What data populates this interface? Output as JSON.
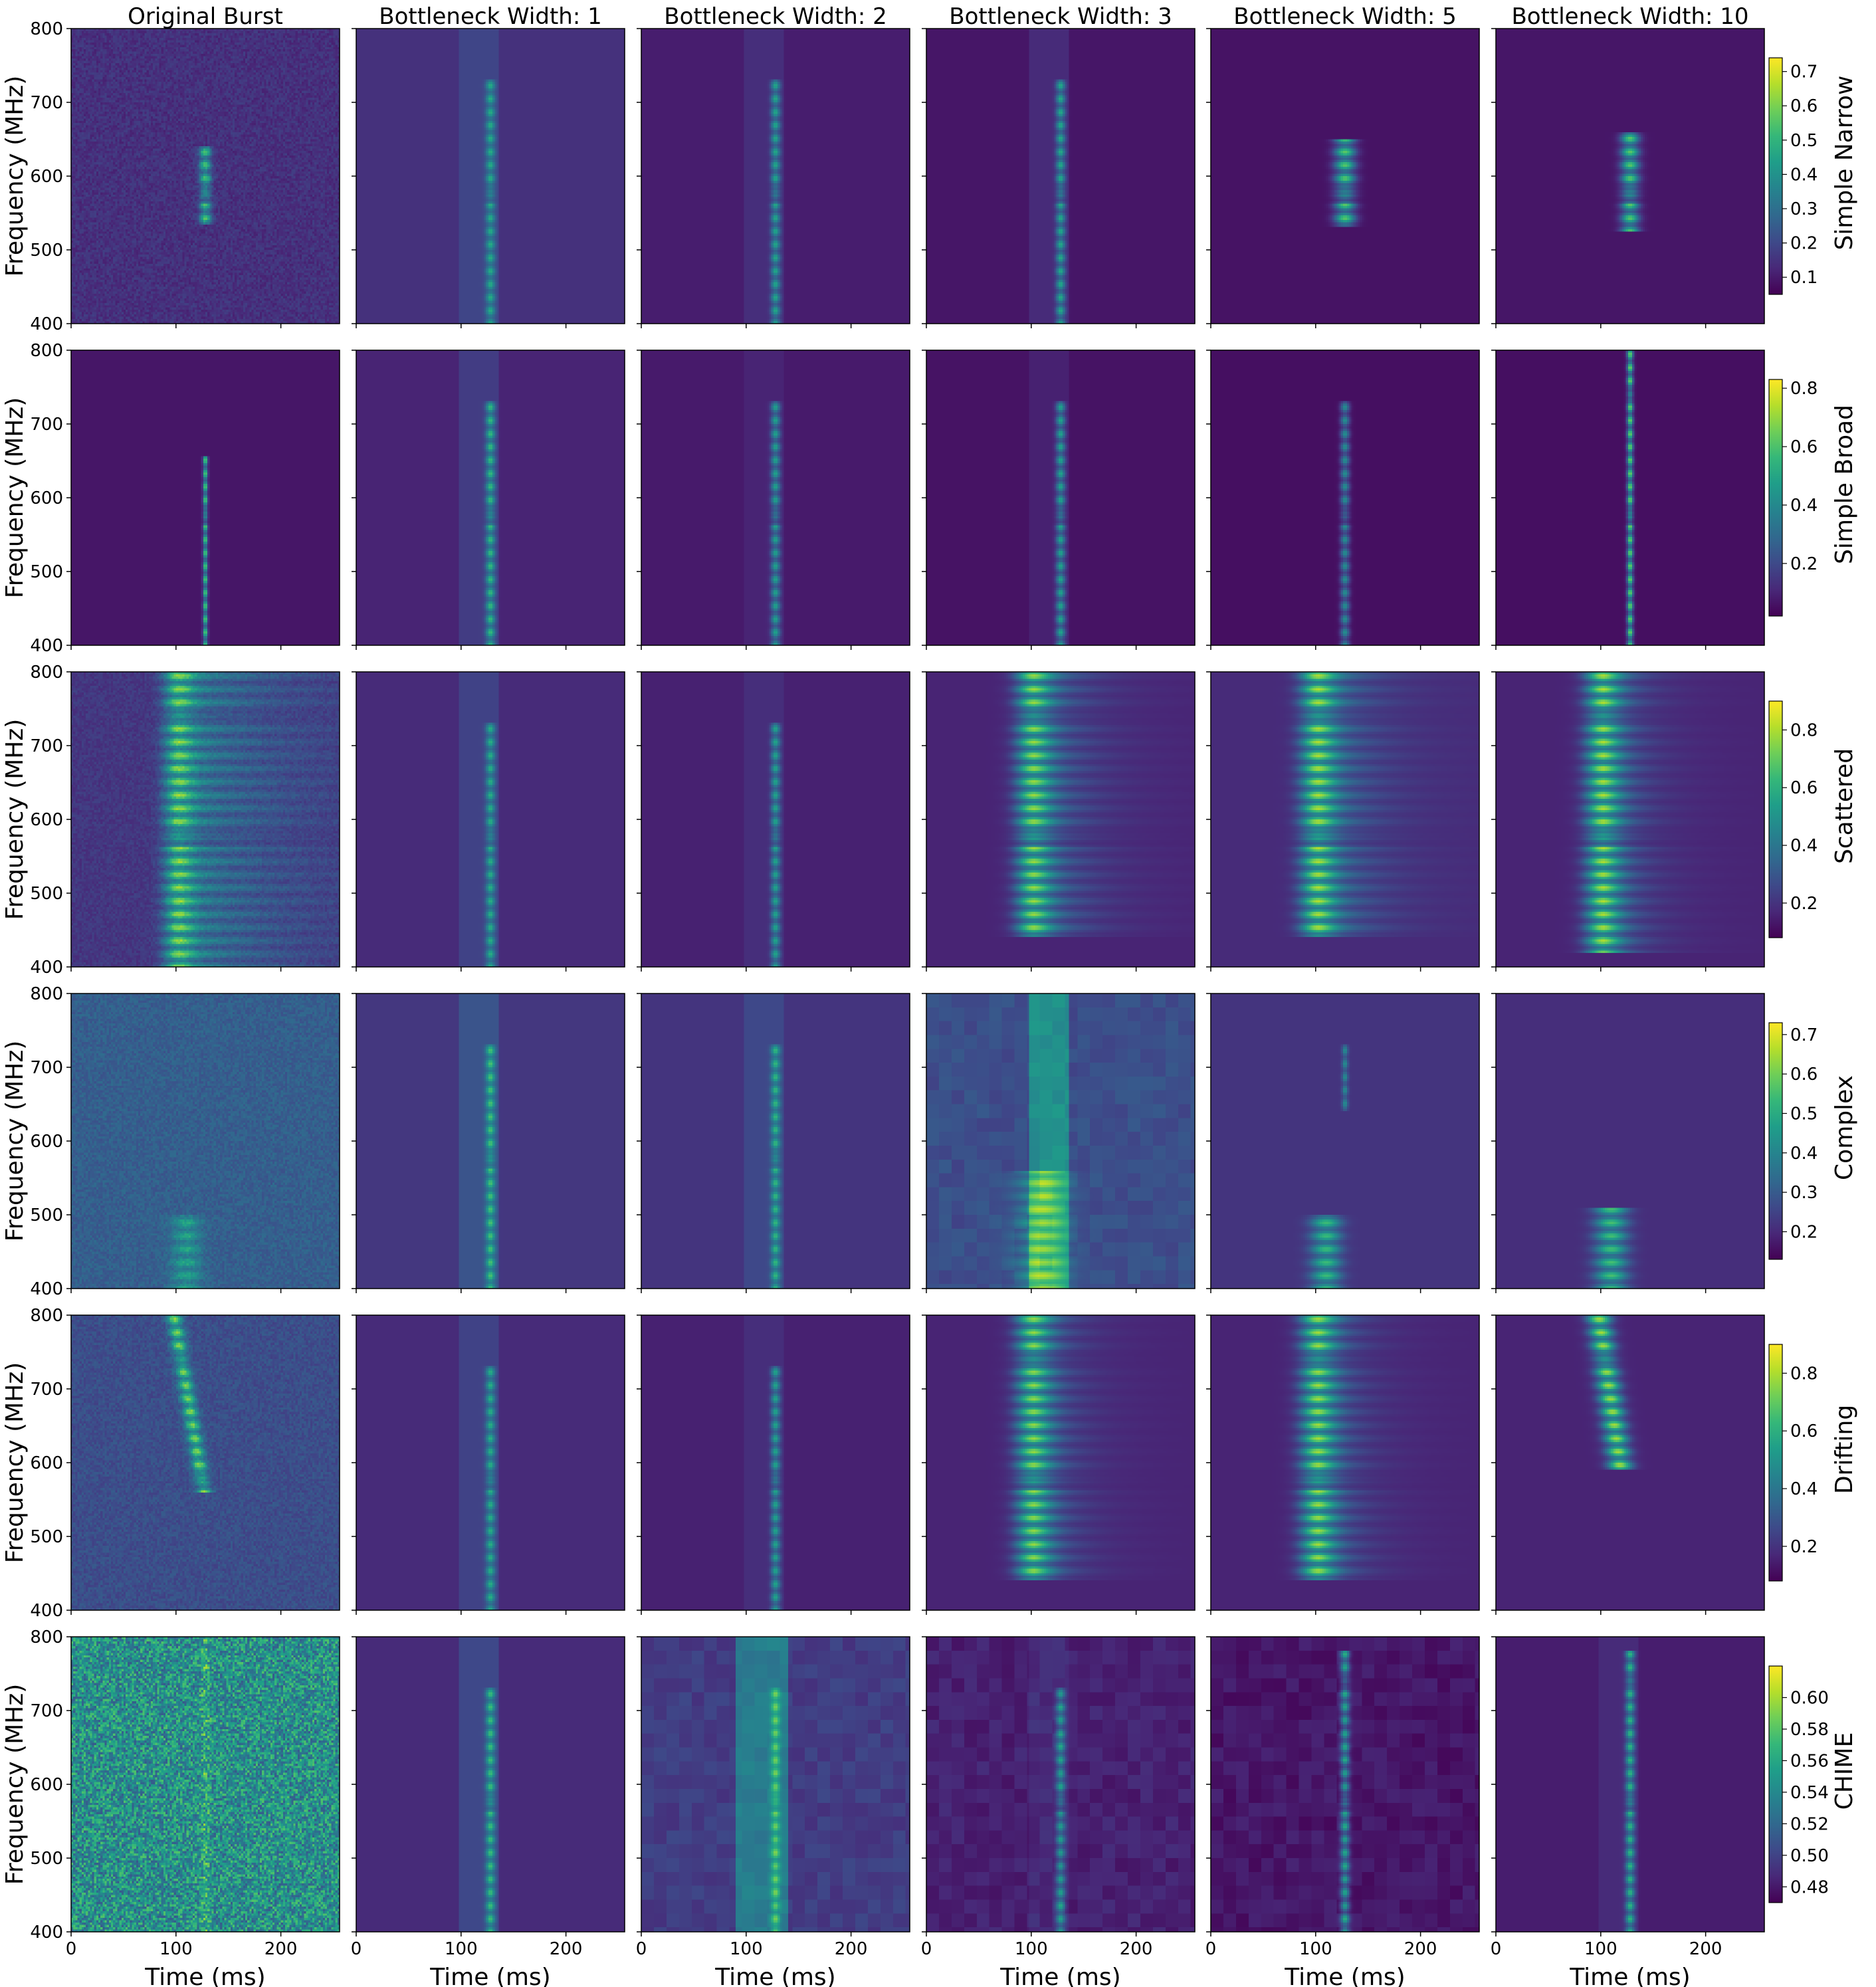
{
  "figure": {
    "column_titles": [
      "Original Burst",
      "Bottleneck Width: 1",
      "Bottleneck Width: 2",
      "Bottleneck Width: 3",
      "Bottleneck Width: 5",
      "Bottleneck Width: 10"
    ],
    "row_labels": [
      "Simple Narrow",
      "Simple Broad",
      "Scattered",
      "Complex",
      "Drifting",
      "CHIME"
    ],
    "ylabel": "Frequency (MHz)",
    "xlabel": "Time (ms)",
    "y_ticks": [
      "400",
      "500",
      "600",
      "700",
      "800"
    ],
    "x_ticks": [
      "0",
      "100",
      "200"
    ]
  },
  "chart_data": {
    "type": "heatmap",
    "colormap": "viridis",
    "colors": {
      "viridis": [
        "#440154",
        "#482878",
        "#3e4989",
        "#31688e",
        "#26828e",
        "#1f9e89",
        "#35b779",
        "#6ece58",
        "#b5de2b",
        "#fde725"
      ]
    },
    "xlabel": "Time (ms)",
    "ylabel": "Frequency (MHz)",
    "xlim": [
      0,
      256
    ],
    "ylim": [
      400,
      800
    ],
    "x_ticks": [
      0,
      100,
      200
    ],
    "y_ticks": [
      400,
      500,
      600,
      700,
      800
    ],
    "columns": [
      "Original Burst",
      "Bottleneck Width: 1",
      "Bottleneck Width: 2",
      "Bottleneck Width: 3",
      "Bottleneck Width: 5",
      "Bottleneck Width: 10"
    ],
    "rows": [
      {
        "label": "Simple Narrow",
        "colorbar": {
          "range": [
            0.05,
            0.74
          ],
          "ticks": [
            "0.1",
            "0.2",
            "0.3",
            "0.4",
            "0.5",
            "0.6",
            "0.7"
          ]
        },
        "panels": [
          {
            "background": 0.14,
            "noise": 0.05,
            "bursts": [
              {
                "t": 128,
                "f": [
                  535,
                  640
                ],
                "width": 4,
                "peak": 0.72
              }
            ]
          },
          {
            "background": 0.14,
            "band": [
              98,
              135,
              0.21
            ],
            "bursts": [
              {
                "t": 128,
                "f": [
                  400,
                  730
                ],
                "width": 3,
                "peak": 0.55
              }
            ]
          },
          {
            "background": 0.08,
            "band": [
              98,
              135,
              0.13
            ],
            "bursts": [
              {
                "t": 128,
                "f": [
                  400,
                  730
                ],
                "width": 3,
                "peak": 0.55
              }
            ]
          },
          {
            "background": 0.06,
            "band": [
              98,
              135,
              0.12
            ],
            "bursts": [
              {
                "t": 128,
                "f": [
                  400,
                  730
                ],
                "width": 3,
                "peak": 0.55
              }
            ]
          },
          {
            "background": 0.05,
            "bursts": [
              {
                "t": 128,
                "f": [
                  530,
                  650
                ],
                "width": 7,
                "peak": 0.74
              }
            ]
          },
          {
            "background": 0.06,
            "bursts": [
              {
                "t": 128,
                "f": [
                  525,
                  660
                ],
                "width": 6,
                "peak": 0.74
              }
            ]
          }
        ]
      },
      {
        "label": "Simple Broad",
        "colorbar": {
          "range": [
            0.02,
            0.83
          ],
          "ticks": [
            "0.2",
            "0.4",
            "0.6",
            "0.8"
          ]
        },
        "panels": [
          {
            "background": 0.06,
            "bursts": [
              {
                "t": 128,
                "f": [
                  400,
                  655
                ],
                "width": 1.5,
                "peak": 0.83
              }
            ]
          },
          {
            "background": 0.1,
            "band": [
              98,
              135,
              0.18
            ],
            "bursts": [
              {
                "t": 128,
                "f": [
                  400,
                  730
                ],
                "width": 3,
                "peak": 0.6
              }
            ]
          },
          {
            "background": 0.07,
            "band": [
              98,
              135,
              0.1
            ],
            "bursts": [
              {
                "t": 128,
                "f": [
                  400,
                  730
                ],
                "width": 3,
                "peak": 0.55
              }
            ]
          },
          {
            "background": 0.05,
            "band": [
              98,
              135,
              0.09
            ],
            "bursts": [
              {
                "t": 128,
                "f": [
                  400,
                  730
                ],
                "width": 3,
                "peak": 0.55
              }
            ]
          },
          {
            "background": 0.04,
            "bursts": [
              {
                "t": 128,
                "f": [
                  400,
                  730
                ],
                "width": 3,
                "peak": 0.5
              }
            ]
          },
          {
            "background": 0.04,
            "bursts": [
              {
                "t": 128,
                "f": [
                  400,
                  800
                ],
                "width": 2,
                "peak": 0.82
              }
            ]
          }
        ]
      },
      {
        "label": "Scattered",
        "colorbar": {
          "range": [
            0.08,
            0.9
          ],
          "ticks": [
            "0.2",
            "0.4",
            "0.6",
            "0.8"
          ]
        },
        "panels": [
          {
            "background": 0.16,
            "noise": 0.04,
            "bursts": [
              {
                "t": 103,
                "f": [
                  400,
                  800
                ],
                "width": 10,
                "peak": 0.85,
                "tail": 80
              }
            ]
          },
          {
            "background": 0.12,
            "band": [
              98,
              135,
              0.2
            ],
            "bursts": [
              {
                "t": 128,
                "f": [
                  400,
                  730
                ],
                "width": 3,
                "peak": 0.55
              }
            ]
          },
          {
            "background": 0.09,
            "band": [
              98,
              135,
              0.13
            ],
            "bursts": [
              {
                "t": 128,
                "f": [
                  400,
                  730
                ],
                "width": 3,
                "peak": 0.55
              }
            ]
          },
          {
            "background": 0.1,
            "bursts": [
              {
                "t": 103,
                "f": [
                  440,
                  800
                ],
                "width": 12,
                "peak": 0.85,
                "tail": 40
              }
            ]
          },
          {
            "background": 0.12,
            "bursts": [
              {
                "t": 103,
                "f": [
                  440,
                  800
                ],
                "width": 12,
                "peak": 0.88,
                "tail": 40
              }
            ]
          },
          {
            "background": 0.1,
            "bursts": [
              {
                "t": 103,
                "f": [
                  420,
                  800
                ],
                "width": 12,
                "peak": 0.88,
                "tail": 30
              }
            ]
          }
        ]
      },
      {
        "label": "Complex",
        "colorbar": {
          "range": [
            0.13,
            0.73
          ],
          "ticks": [
            "0.2",
            "0.3",
            "0.4",
            "0.5",
            "0.6",
            "0.7"
          ]
        },
        "panels": [
          {
            "background": 0.3,
            "noise": 0.05,
            "bursts": [
              {
                "t": 110,
                "f": [
                  400,
                  500
                ],
                "width": 10,
                "peak": 0.6
              }
            ]
          },
          {
            "background": 0.16,
            "band": [
              98,
              135,
              0.26
            ],
            "bursts": [
              {
                "t": 128,
                "f": [
                  400,
                  730
                ],
                "width": 3,
                "peak": 0.62
              }
            ]
          },
          {
            "background": 0.15,
            "band": [
              98,
              135,
              0.22
            ],
            "bursts": [
              {
                "t": 128,
                "f": [
                  400,
                  730
                ],
                "width": 3,
                "peak": 0.6
              }
            ]
          },
          {
            "background": 0.24,
            "blocky": true,
            "band": [
              98,
              135,
              0.5
            ],
            "bursts": [
              {
                "t": 110,
                "f": [
                  400,
                  560
                ],
                "width": 16,
                "peak": 0.62
              }
            ]
          },
          {
            "background": 0.15,
            "bursts": [
              {
                "t": 110,
                "f": [
                  400,
                  500
                ],
                "width": 10,
                "peak": 0.68
              },
              {
                "t": 128,
                "f": [
                  640,
                  730
                ],
                "width": 2,
                "peak": 0.5
              }
            ]
          },
          {
            "background": 0.13,
            "bursts": [
              {
                "t": 110,
                "f": [
                  400,
                  510
                ],
                "width": 11,
                "peak": 0.7
              }
            ]
          }
        ]
      },
      {
        "label": "Drifting",
        "colorbar": {
          "range": [
            0.08,
            0.9
          ],
          "ticks": [
            "0.2",
            "0.4",
            "0.6",
            "0.8"
          ]
        },
        "panels": [
          {
            "background": 0.24,
            "noise": 0.05,
            "bursts": [
              {
                "t": 98,
                "f": [
                  560,
                  800
                ],
                "width": 5,
                "peak": 0.82,
                "drift": 0.12
              }
            ]
          },
          {
            "background": 0.12,
            "band": [
              98,
              135,
              0.2
            ],
            "bursts": [
              {
                "t": 128,
                "f": [
                  400,
                  730
                ],
                "width": 3,
                "peak": 0.55
              }
            ]
          },
          {
            "background": 0.09,
            "band": [
              98,
              135,
              0.13
            ],
            "bursts": [
              {
                "t": 128,
                "f": [
                  400,
                  730
                ],
                "width": 3,
                "peak": 0.55
              }
            ]
          },
          {
            "background": 0.1,
            "bursts": [
              {
                "t": 103,
                "f": [
                  440,
                  800
                ],
                "width": 12,
                "peak": 0.84,
                "tail": 30
              }
            ]
          },
          {
            "background": 0.1,
            "bursts": [
              {
                "t": 103,
                "f": [
                  440,
                  800
                ],
                "width": 12,
                "peak": 0.86,
                "tail": 30
              }
            ]
          },
          {
            "background": 0.1,
            "bursts": [
              {
                "t": 98,
                "f": [
                  590,
                  800
                ],
                "width": 8,
                "peak": 0.86,
                "drift": 0.1
              }
            ]
          }
        ]
      },
      {
        "label": "CHIME",
        "colorbar": {
          "range": [
            0.47,
            0.62
          ],
          "ticks": [
            "0.48",
            "0.50",
            "0.52",
            "0.54",
            "0.56",
            "0.58",
            "0.60"
          ]
        },
        "panels": [
          {
            "background": 0.5,
            "noise": 0.22,
            "bursts": [
              {
                "t": 128,
                "f": [
                  400,
                  800
                ],
                "width": 3,
                "peak": 0.66
              }
            ]
          },
          {
            "background": 0.12,
            "band": [
              98,
              135,
              0.22
            ],
            "bursts": [
              {
                "t": 128,
                "f": [
                  400,
                  730
                ],
                "width": 3,
                "peak": 0.6
              }
            ]
          },
          {
            "background": 0.18,
            "blocky": true,
            "band": [
              90,
              140,
              0.42
            ],
            "bursts": [
              {
                "t": 128,
                "f": [
                  400,
                  730
                ],
                "width": 3,
                "peak": 0.55
              }
            ]
          },
          {
            "background": 0.09,
            "blocky": true,
            "band": [
              98,
              135,
              0.12
            ],
            "bursts": [
              {
                "t": 128,
                "f": [
                  400,
                  730
                ],
                "width": 3,
                "peak": 0.55
              }
            ]
          },
          {
            "background": 0.06,
            "blocky": true,
            "bursts": [
              {
                "t": 128,
                "f": [
                  400,
                  780
                ],
                "width": 3,
                "peak": 0.6
              }
            ]
          },
          {
            "background": 0.08,
            "band": [
              98,
              135,
              0.12
            ],
            "bursts": [
              {
                "t": 128,
                "f": [
                  400,
                  780
                ],
                "width": 3,
                "peak": 0.62
              }
            ]
          }
        ]
      }
    ]
  }
}
